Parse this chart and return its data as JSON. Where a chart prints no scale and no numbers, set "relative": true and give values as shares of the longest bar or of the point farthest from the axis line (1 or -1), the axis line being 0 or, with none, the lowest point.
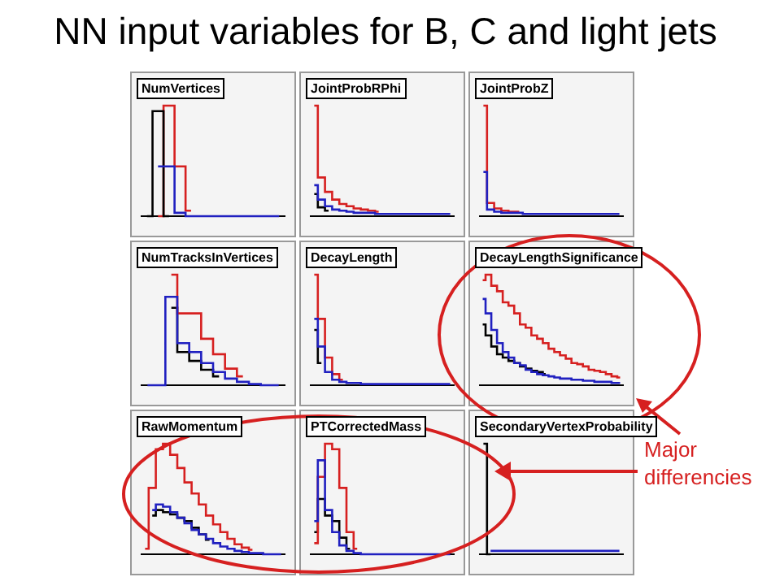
{
  "chart_data": [
    {
      "type": "other",
      "title": "NN input variables for B, C and light jets",
      "annotations": [
        "Major differencies"
      ]
    },
    {
      "type": "step",
      "title": "NumVertices",
      "relative": true,
      "tick_labels": false,
      "marker": "none",
      "categories": [
        null,
        null,
        null,
        null,
        null,
        null,
        null,
        null,
        null,
        null,
        null,
        null,
        null
      ],
      "series": [
        {
          "color": "#2020c0",
          "values": [
            null,
            0.45,
            0.45,
            0.03,
            0,
            0,
            0,
            0,
            0,
            0,
            0,
            0,
            0
          ]
        },
        {
          "color": "#000000",
          "values": [
            0,
            0.95,
            0,
            null,
            null,
            null,
            null,
            null,
            null,
            null,
            null,
            null,
            null
          ]
        },
        {
          "color": "#d62020",
          "values": [
            null,
            0,
            1,
            0.45,
            0.05,
            null,
            null,
            null,
            null,
            null,
            null,
            null,
            null
          ]
        }
      ]
    },
    {
      "type": "step",
      "title": "JointProbRPhi",
      "relative": true,
      "tick_labels": false,
      "marker": "none",
      "categories": [
        null,
        null,
        null,
        null,
        null,
        null,
        null,
        null,
        null,
        null,
        null,
        null,
        null,
        null,
        null,
        null,
        null,
        null,
        null,
        null
      ],
      "series": [
        {
          "color": "#2020c0",
          "values": [
            0.28,
            0.15,
            0.09,
            0.06,
            0.05,
            0.04,
            0.03,
            0.03,
            0.03,
            0.02,
            0.02,
            0.02,
            0.02,
            0.02,
            0.02,
            0.02,
            0.02,
            0.02,
            0.02,
            0.02
          ]
        },
        {
          "color": "#d62020",
          "values": [
            1,
            0.35,
            0.22,
            0.15,
            0.11,
            0.09,
            0.07,
            0.06,
            0.05,
            0.04,
            null,
            null,
            null,
            null,
            null,
            null,
            null,
            null,
            null,
            null
          ]
        },
        {
          "color": "#000000",
          "values": [
            0.2,
            0.08,
            0.05,
            null,
            null,
            null,
            null,
            null,
            null,
            null,
            null,
            null,
            null,
            null,
            null,
            null,
            null,
            null,
            null,
            null
          ]
        }
      ]
    },
    {
      "type": "step",
      "title": "JointProbZ",
      "relative": true,
      "tick_labels": false,
      "marker": "none",
      "categories": [
        null,
        null,
        null,
        null,
        null,
        null,
        null,
        null,
        null,
        null,
        null,
        null,
        null,
        null,
        null,
        null,
        null,
        null,
        null,
        null
      ],
      "series": [
        {
          "color": "#2020c0",
          "values": [
            0.4,
            0.06,
            0.04,
            0.03,
            0.03,
            0.03,
            0.02,
            0.02,
            0.02,
            0.02,
            0.02,
            0.02,
            0.02,
            0.02,
            0.02,
            0.02,
            0.02,
            0.02,
            0.02,
            0.02
          ]
        },
        {
          "color": "#d62020",
          "values": [
            1,
            0.12,
            0.07,
            0.05,
            0.04,
            0.04,
            null,
            null,
            null,
            null,
            null,
            null,
            null,
            null,
            null,
            null,
            null,
            null,
            null,
            null
          ]
        }
      ]
    },
    {
      "type": "step",
      "title": "NumTracksInVertices",
      "relative": true,
      "tick_labels": false,
      "marker": "none",
      "categories": [
        null,
        null,
        null,
        null,
        null,
        null,
        null,
        null,
        null,
        null,
        null,
        null
      ],
      "series": [
        {
          "color": "#2020c0",
          "values": [
            0,
            0,
            0.8,
            0.38,
            0.3,
            0.2,
            0.12,
            0.06,
            0.03,
            0.01,
            0,
            0
          ]
        },
        {
          "color": "#d62020",
          "values": [
            null,
            null,
            1,
            0.65,
            0.65,
            0.42,
            0.28,
            0.15,
            0.08,
            null,
            null,
            null
          ]
        },
        {
          "color": "#000000",
          "values": [
            null,
            null,
            0.7,
            0.3,
            0.22,
            0.14,
            0.08,
            null,
            null,
            null,
            null,
            null
          ]
        }
      ]
    },
    {
      "type": "step",
      "title": "DecayLength",
      "relative": true,
      "tick_labels": false,
      "marker": "none",
      "categories": [
        null,
        null,
        null,
        null,
        null,
        null,
        null,
        null,
        null,
        null,
        null,
        null,
        null,
        null,
        null,
        null,
        null,
        null,
        null,
        null
      ],
      "series": [
        {
          "color": "#2020c0",
          "values": [
            0.6,
            0.35,
            0.12,
            0.05,
            0.03,
            0.02,
            0.02,
            0.01,
            0.01,
            0.01,
            0.01,
            0.01,
            0.01,
            0.01,
            0.01,
            0.01,
            0.01,
            0.01,
            0.01,
            0.01
          ]
        },
        {
          "color": "#d62020",
          "values": [
            1,
            0.6,
            0.25,
            0.1,
            0.05,
            null,
            null,
            null,
            null,
            null,
            null,
            null,
            null,
            null,
            null,
            null,
            null,
            null,
            null,
            null
          ]
        },
        {
          "color": "#000000",
          "values": [
            0.5,
            0.2,
            null,
            null,
            null,
            null,
            null,
            null,
            null,
            null,
            null,
            null,
            null,
            null,
            null,
            null,
            null,
            null,
            null,
            null
          ]
        }
      ]
    },
    {
      "type": "step",
      "title": "DecayLengthSignificance",
      "relative": true,
      "tick_labels": false,
      "marker": "none",
      "categories": [
        null,
        null,
        null,
        null,
        null,
        null,
        null,
        null,
        null,
        null,
        null,
        null,
        null,
        null,
        null,
        null,
        null,
        null,
        null,
        null,
        null,
        null,
        null,
        null,
        null
      ],
      "series": [
        {
          "color": "#2020c0",
          "values": [
            0.78,
            0.65,
            0.5,
            0.38,
            0.3,
            0.25,
            0.2,
            0.18,
            0.14,
            0.12,
            0.1,
            0.09,
            0.08,
            0.07,
            0.06,
            0.06,
            0.05,
            0.05,
            0.04,
            0.04,
            0.03,
            0.03,
            0.03,
            0.02,
            0.02
          ]
        },
        {
          "color": "#d62020",
          "values": [
            0.95,
            1,
            0.9,
            0.85,
            0.75,
            0.72,
            0.65,
            0.55,
            0.52,
            0.45,
            0.42,
            0.38,
            0.33,
            0.3,
            0.27,
            0.24,
            0.2,
            0.19,
            0.17,
            0.14,
            0.13,
            0.12,
            0.1,
            0.08,
            0.07
          ]
        },
        {
          "color": "#000000",
          "values": [
            0.55,
            0.45,
            0.35,
            0.28,
            0.25,
            0.22,
            0.2,
            0.17,
            0.15,
            0.13,
            0.12,
            0.1,
            null,
            null,
            null,
            null,
            null,
            null,
            null,
            null,
            null,
            null,
            null,
            null,
            null
          ]
        }
      ]
    },
    {
      "type": "step",
      "title": "RawMomentum",
      "relative": true,
      "tick_labels": false,
      "marker": "none",
      "categories": [
        null,
        null,
        null,
        null,
        null,
        null,
        null,
        null,
        null,
        null,
        null,
        null,
        null,
        null,
        null,
        null,
        null,
        null,
        null,
        null
      ],
      "series": [
        {
          "color": "#2020c0",
          "values": [
            null,
            0.4,
            0.45,
            0.43,
            0.38,
            0.33,
            0.28,
            0.22,
            0.18,
            0.14,
            0.1,
            0.07,
            0.05,
            0.03,
            0.02,
            0.01,
            0.01,
            0,
            0,
            0
          ]
        },
        {
          "color": "#d62020",
          "values": [
            0.05,
            0.6,
            0.95,
            1,
            0.9,
            0.78,
            0.65,
            0.55,
            0.45,
            0.35,
            0.27,
            0.2,
            0.14,
            0.09,
            0.06,
            0.04,
            null,
            null,
            null,
            null
          ]
        },
        {
          "color": "#000000",
          "values": [
            null,
            0.35,
            0.4,
            0.38,
            0.36,
            0.33,
            0.3,
            0.24,
            0.18,
            0.13,
            null,
            null,
            null,
            null,
            null,
            null,
            null,
            null,
            null,
            null
          ]
        }
      ]
    },
    {
      "type": "step",
      "title": "PTCorrectedMass",
      "relative": true,
      "tick_labels": false,
      "marker": "none",
      "categories": [
        null,
        null,
        null,
        null,
        null,
        null,
        null,
        null,
        null,
        null,
        null,
        null,
        null,
        null,
        null,
        null,
        null,
        null,
        null,
        null
      ],
      "series": [
        {
          "color": "#2020c0",
          "values": [
            0.3,
            0.85,
            0.4,
            0.2,
            0.08,
            0.03,
            0.01,
            0,
            0,
            0,
            0,
            0,
            0,
            0,
            0,
            0,
            0,
            0,
            0,
            0
          ]
        },
        {
          "color": "#d62020",
          "values": [
            0.1,
            0.7,
            1,
            0.95,
            0.6,
            0.2,
            0.05,
            null,
            null,
            null,
            null,
            null,
            null,
            null,
            null,
            null,
            null,
            null,
            null,
            null
          ]
        },
        {
          "color": "#000000",
          "values": [
            0.2,
            0.5,
            0.35,
            0.3,
            0.15,
            0.05,
            null,
            null,
            null,
            null,
            null,
            null,
            null,
            null,
            null,
            null,
            null,
            null,
            null,
            null
          ]
        }
      ]
    },
    {
      "type": "step",
      "title": "SecondaryVertexProbability",
      "relative": true,
      "tick_labels": false,
      "marker": "none",
      "categories": [
        null,
        null,
        null,
        null,
        null,
        null,
        null,
        null,
        null,
        null,
        null,
        null,
        null,
        null,
        null,
        null,
        null,
        null,
        null,
        null
      ],
      "series": [
        {
          "color": "#2020c0",
          "values": [
            null,
            0.03,
            0.03,
            0.03,
            0.03,
            0.03,
            0.03,
            0.03,
            0.03,
            0.03,
            0.03,
            0.03,
            0.03,
            0.03,
            0.03,
            0.03,
            0.03,
            0.03,
            0.03,
            0.03
          ]
        },
        {
          "color": "#000000",
          "values": [
            1,
            0,
            null,
            null,
            null,
            null,
            null,
            null,
            null,
            null,
            null,
            null,
            null,
            null,
            null,
            null,
            null,
            null,
            null,
            null
          ]
        }
      ]
    }
  ]
}
